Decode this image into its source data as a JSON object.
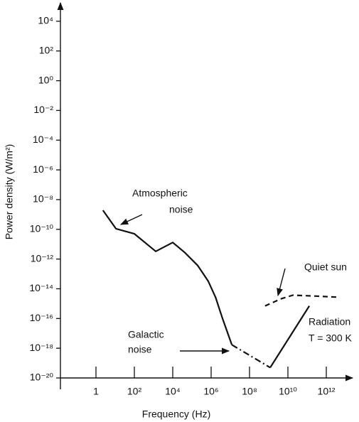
{
  "chart_data": {
    "type": "line",
    "xlabel": "Frequency (Hz)",
    "ylabel": "Power density (W/m²)",
    "xscale": "log",
    "yscale": "log",
    "xlim": [
      0.01,
      10000000000000.0
    ],
    "ylim": [
      1e-20,
      100000.0
    ],
    "xticks": [
      1,
      {
        "value": 100,
        "label": "10²"
      },
      {
        "value": 10000,
        "label": "10⁴"
      },
      {
        "value": 1000000,
        "label": "10⁶"
      },
      {
        "value": 100000000,
        "label": "10⁸"
      },
      {
        "value": 10000000000,
        "label": "10¹⁰"
      },
      {
        "value": 1000000000000,
        "label": "10¹²"
      }
    ],
    "yticks": [
      {
        "value": 10000,
        "label": "10⁴"
      },
      {
        "value": 100,
        "label": "10²"
      },
      {
        "value": 1,
        "label": "10⁰"
      },
      {
        "value": 0.01,
        "label": "10⁻²"
      },
      {
        "value": 0.0001,
        "label": "10⁻⁴"
      },
      {
        "value": 1e-06,
        "label": "10⁻⁶"
      },
      {
        "value": 1e-08,
        "label": "10⁻⁸"
      },
      {
        "value": 1e-10,
        "label": "10⁻¹⁰"
      },
      {
        "value": 1e-12,
        "label": "10⁻¹²"
      },
      {
        "value": 1e-14,
        "label": "10⁻¹⁴"
      },
      {
        "value": 1e-16,
        "label": "10⁻¹⁶"
      },
      {
        "value": 1e-18,
        "label": "10⁻¹⁸"
      },
      {
        "value": 1e-20,
        "label": "10⁻²⁰"
      }
    ],
    "series": [
      {
        "color": "#111111",
        "dash": "solid",
        "x": [
          2.3,
          11,
          100,
          1300,
          10000,
          43000,
          200000,
          700000,
          1700000,
          3900000,
          12000000
        ],
        "values": [
          1.9e-09,
          1.1e-10,
          5e-11,
          3.3e-12,
          1.3e-11,
          2.7e-12,
          3.7e-13,
          3.3e-14,
          2.7e-15,
          1e-16,
          1.7e-18
        ]
      },
      {
        "color": "#111111",
        "dash": "dashdot",
        "x": [
          12000000,
          1200000000
        ],
        "values": [
          1.7e-18,
          5e-20
        ]
      },
      {
        "color": "#111111",
        "dash": "solid",
        "x": [
          1200000000,
          130000000000
        ],
        "values": [
          5e-20,
          7e-16
        ]
      },
      {
        "color": "#111111",
        "dash": "dashed",
        "x": [
          650000000,
          4300000000,
          18000000000,
          200000000000,
          4700000000000
        ],
        "values": [
          7e-16,
          2.1e-15,
          3.7e-15,
          3.3e-15,
          2.7e-15
        ]
      }
    ],
    "annotations": [
      {
        "lines": [
          "Atmospheric",
          "noise"
        ]
      },
      {
        "lines": [
          "Quiet sun"
        ]
      },
      {
        "lines": [
          "Galactic",
          "noise"
        ]
      },
      {
        "lines": [
          "Radiation",
          "T = 300 K"
        ]
      }
    ]
  }
}
